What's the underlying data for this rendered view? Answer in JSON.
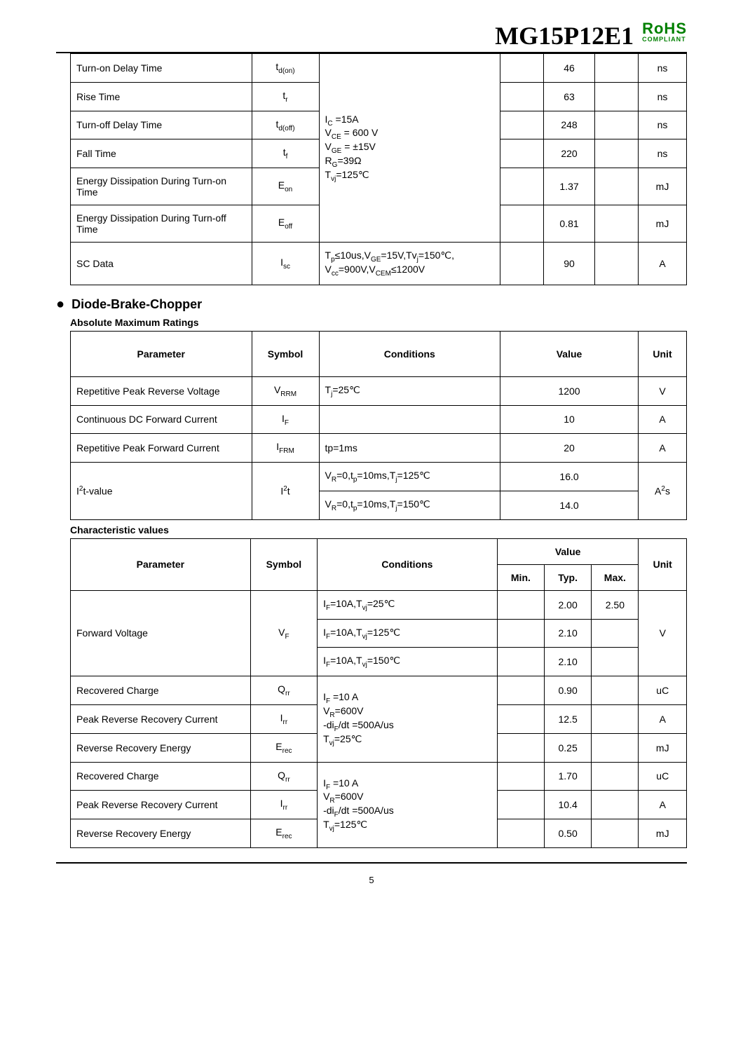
{
  "header": {
    "part_number": "MG15P12E1",
    "rohs_label": "RoHS",
    "rohs_sub": "COMPLIANT"
  },
  "top_table": {
    "conditions_igbt": "I<sub>C</sub> =15A<br>V<sub>CE</sub> = 600 V<br>V<sub>GE</sub> = ±15V<br>R<sub>G</sub>=39Ω<br>T<sub>vj</sub>=125℃",
    "rows": [
      {
        "param": "Turn-on Delay Time",
        "symbol": "t<sub>d(on)</sub>",
        "typ": "46",
        "unit": "ns"
      },
      {
        "param": "Rise Time",
        "symbol": "t<sub>r</sub>",
        "typ": "63",
        "unit": "ns"
      },
      {
        "param": "Turn-off Delay Time",
        "symbol": "t<sub>d(off)</sub>",
        "typ": "248",
        "unit": "ns"
      },
      {
        "param": "Fall Time",
        "symbol": "t<sub>f</sub>",
        "typ": "220",
        "unit": "ns"
      },
      {
        "param": "Energy Dissipation During Turn-on Time",
        "symbol": "E<sub>on</sub>",
        "typ": "1.37",
        "unit": "mJ"
      },
      {
        "param": "Energy Dissipation During Turn-off Time",
        "symbol": "E<sub>off</sub>",
        "typ": "0.81",
        "unit": "mJ"
      }
    ],
    "sc_row": {
      "param": "SC Data",
      "symbol": "I<sub>sc</sub>",
      "cond": "T<sub>p</sub>≤10us,V<sub>GE</sub>=15V,Tv<sub>j</sub>=150℃,<br>V<sub>cc</sub>=900V,V<sub>CEM</sub>≤1200V",
      "typ": "90",
      "unit": "A"
    }
  },
  "diode_section": {
    "title": "Diode-Brake-Chopper",
    "abs_title": "Absolute Maximum Ratings",
    "char_title": "Characteristic values",
    "headers": {
      "param": "Parameter",
      "symbol": "Symbol",
      "cond": "Conditions",
      "value": "Value",
      "unit": "Unit",
      "min": "Min.",
      "typ": "Typ.",
      "max": "Max."
    },
    "abs_rows": [
      {
        "param": "Repetitive Peak Reverse Voltage",
        "symbol": "V<sub>RRM</sub>",
        "cond": "T<sub>j</sub>=25℃",
        "value": "1200",
        "unit": "V"
      },
      {
        "param": "Continuous DC Forward Current",
        "symbol": "I<sub>F</sub>",
        "cond": "",
        "value": "10",
        "unit": "A"
      },
      {
        "param": "Repetitive Peak Forward Current",
        "symbol": "I<sub>FRM</sub>",
        "cond": "tp=1ms",
        "value": "20",
        "unit": "A"
      }
    ],
    "i2t": {
      "param": "I<sup>2</sup>t-value",
      "symbol": "I<sup>2</sup>t",
      "r1_cond": "V<sub>R</sub>=0,t<sub>p</sub>=10ms,T<sub>j</sub>=125℃",
      "r1_val": "16.0",
      "r2_cond": "V<sub>R</sub>=0,t<sub>p</sub>=10ms,T<sub>j</sub>=150℃",
      "r2_val": "14.0",
      "unit": "A<sup>2</sup>s"
    },
    "vf": {
      "param": "Forward Voltage",
      "symbol": "V<sub>F</sub>",
      "unit": "V",
      "r1_cond": "I<sub>F</sub>=10A,T<sub>vj</sub>=25℃",
      "r1_typ": "2.00",
      "r1_max": "2.50",
      "r2_cond": "I<sub>F</sub>=10A,T<sub>vj</sub>=125℃",
      "r2_typ": "2.10",
      "r3_cond": "I<sub>F</sub>=10A,T<sub>vj</sub>=150℃",
      "r3_typ": "2.10"
    },
    "rec25": {
      "cond": "I<sub>F</sub> =10 A<br>V<sub>R</sub>=600V<br>-di<sub>F</sub>/dt =500A/us<br>T<sub>vj</sub>=25℃",
      "qrr": {
        "param": "Recovered Charge",
        "symbol": "Q<sub>rr</sub>",
        "typ": "0.90",
        "unit": "uC"
      },
      "irr": {
        "param": "Peak Reverse Recovery Current",
        "symbol": "I<sub>rr</sub>",
        "typ": "12.5",
        "unit": "A"
      },
      "erec": {
        "param": "Reverse Recovery Energy",
        "symbol": "E<sub>rec</sub>",
        "typ": "0.25",
        "unit": "mJ"
      }
    },
    "rec125": {
      "cond": "I<sub>F</sub> =10 A<br>V<sub>R</sub>=600V<br>-di<sub>F</sub>/dt =500A/us<br>T<sub>vj</sub>=125℃",
      "qrr": {
        "param": "Recovered Charge",
        "symbol": "Q<sub>rr</sub>",
        "typ": "1.70",
        "unit": "uC"
      },
      "irr": {
        "param": "Peak Reverse Recovery Current",
        "symbol": "I<sub>rr</sub>",
        "typ": "10.4",
        "unit": "A"
      },
      "erec": {
        "param": "Reverse Recovery Energy",
        "symbol": "E<sub>rec</sub>",
        "typ": "0.50",
        "unit": "mJ"
      }
    }
  },
  "page_number": "5"
}
